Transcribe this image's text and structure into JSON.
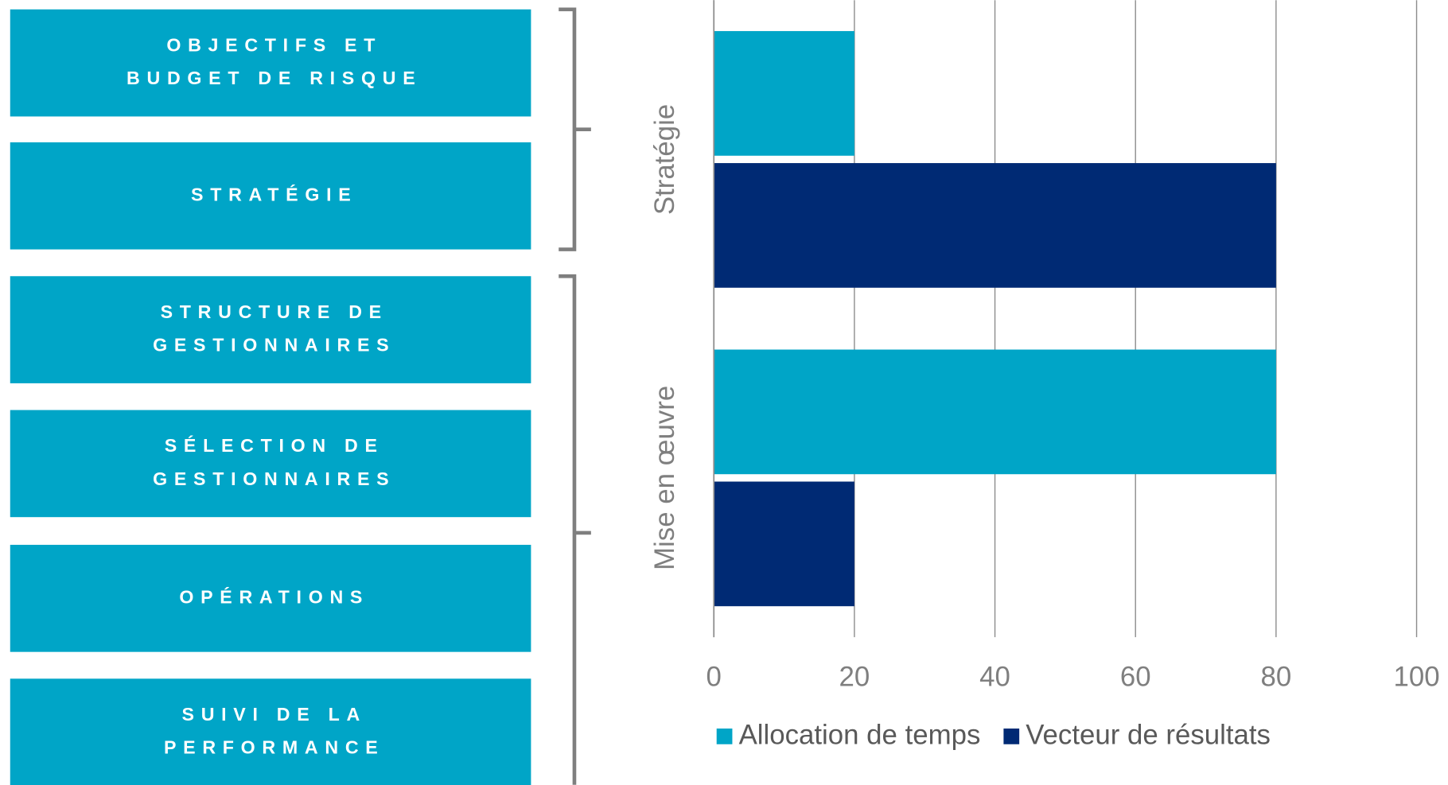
{
  "steps": [
    [
      "OBJECTIFS ET",
      "BUDGET DE RISQUE"
    ],
    [
      "STRATÉGIE"
    ],
    [
      "STRUCTURE DE",
      "GESTIONNAIRES"
    ],
    [
      "SÉLECTION DE",
      "GESTIONNAIRES"
    ],
    [
      "OPÉRATIONS"
    ],
    [
      "SUIVI DE LA",
      "PERFORMANCE"
    ]
  ],
  "chart_data": {
    "type": "bar",
    "orientation": "horizontal",
    "categories": [
      "Stratégie",
      "Mise en œuvre"
    ],
    "series": [
      {
        "name": "Allocation de temps",
        "color": "#00a5c7",
        "values": [
          20,
          80
        ]
      },
      {
        "name": "Vecteur de résultats",
        "color": "#002a74",
        "values": [
          80,
          20
        ]
      }
    ],
    "xlim": [
      0,
      100
    ],
    "xticks": [
      0,
      20,
      40,
      60,
      80,
      100
    ],
    "grid": true,
    "legend": "bottom"
  }
}
